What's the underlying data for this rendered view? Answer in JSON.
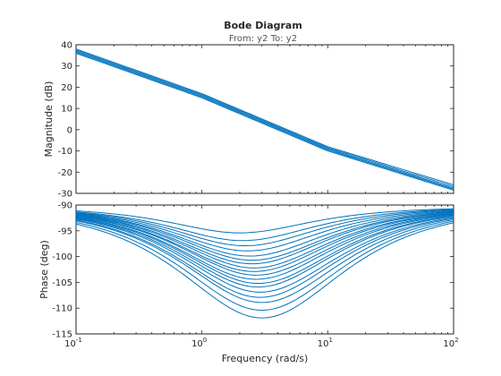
{
  "chart_data": [
    {
      "type": "line",
      "title": "Bode Diagram",
      "subtitle": "From: y2  To: y2",
      "ylabel": "Magnitude (dB)",
      "xscale": "log",
      "xlim": [
        0.1,
        100
      ],
      "ylim": [
        -30,
        40
      ],
      "yticks": [
        -30,
        -20,
        -10,
        0,
        10,
        20,
        30,
        40
      ],
      "grid": false,
      "series_color": "#0072BD",
      "series": [
        {
          "x": [
            0.1,
            1,
            10,
            100
          ],
          "values": [
            38,
            17,
            -8,
            -26
          ]
        },
        {
          "x": [
            0.1,
            1,
            10,
            100
          ],
          "values": [
            37.5,
            16.5,
            -8.5,
            -26.8
          ]
        },
        {
          "x": [
            0.1,
            1,
            10,
            100
          ],
          "values": [
            37,
            16,
            -9,
            -27.5
          ]
        },
        {
          "x": [
            0.1,
            1,
            10,
            100
          ],
          "values": [
            36.5,
            15.5,
            -9.5,
            -28
          ]
        },
        {
          "x": [
            0.1,
            1,
            10,
            100
          ],
          "values": [
            36,
            15,
            -10,
            -28.5
          ]
        }
      ]
    },
    {
      "type": "line",
      "ylabel": "Phase (deg)",
      "xlabel": "Frequency  (rad/s)",
      "xscale": "log",
      "xlim": [
        0.1,
        100
      ],
      "ylim": [
        -115,
        -90
      ],
      "yticks": [
        -115,
        -110,
        -105,
        -100,
        -95,
        -90
      ],
      "xticks": [
        {
          "base": "10",
          "exp": "-1"
        },
        {
          "base": "10",
          "exp": "0"
        },
        {
          "base": "10",
          "exp": "1"
        },
        {
          "base": "10",
          "exp": "2"
        }
      ],
      "grid": false,
      "series_color": "#0072BD",
      "series": [
        {
          "center": 2.0,
          "min": -95.0
        },
        {
          "center": 2.1,
          "min": -96.5
        },
        {
          "center": 2.2,
          "min": -97.5
        },
        {
          "center": 2.3,
          "min": -98.5
        },
        {
          "center": 2.4,
          "min": -99.5
        },
        {
          "center": 2.5,
          "min": -100.3
        },
        {
          "center": 2.5,
          "min": -101.0
        },
        {
          "center": 2.6,
          "min": -101.8
        },
        {
          "center": 2.6,
          "min": -102.5
        },
        {
          "center": 2.7,
          "min": -103.2
        },
        {
          "center": 2.7,
          "min": -104.0
        },
        {
          "center": 2.8,
          "min": -104.8
        },
        {
          "center": 2.8,
          "min": -105.5
        },
        {
          "center": 2.9,
          "min": -106.5
        },
        {
          "center": 2.9,
          "min": -107.5
        },
        {
          "center": 3.0,
          "min": -108.5
        },
        {
          "center": 3.0,
          "min": -110.0
        },
        {
          "center": 3.0,
          "min": -111.5
        }
      ]
    }
  ]
}
